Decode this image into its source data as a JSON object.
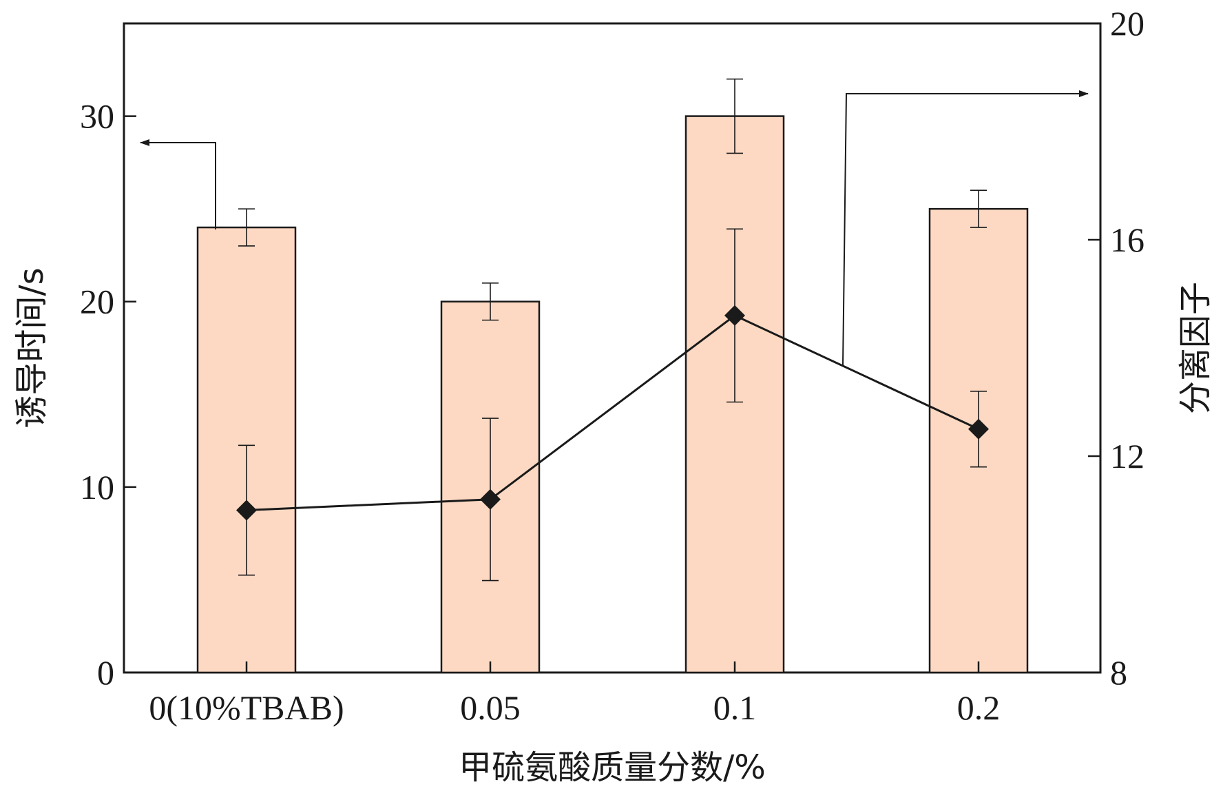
{
  "chart_data": {
    "type": "bar+line",
    "categories": [
      "0(10%TBAB)",
      "0.05",
      "0.1",
      "0.2"
    ],
    "bar_series": {
      "name": "诱导时间",
      "axis": "left",
      "values": [
        24,
        20,
        30,
        25
      ],
      "errors": [
        1,
        1,
        2,
        1
      ]
    },
    "line_series": {
      "name": "分离因子",
      "axis": "right",
      "values": [
        11.0,
        11.2,
        14.6,
        12.5
      ],
      "errors": [
        1.2,
        1.5,
        1.6,
        0.7
      ]
    },
    "xlabel": "甲硫氨酸质量分数/%",
    "ylabel_left": "诱导时间/s",
    "ylabel_right": "分离因子",
    "ylim_left": [
      0,
      35
    ],
    "ylim_right": [
      8,
      20
    ],
    "yticks_left": [
      "0",
      "10",
      "20",
      "30"
    ],
    "yticks_right": [
      "8",
      "12",
      "16",
      "20"
    ],
    "colors": {
      "bar_fill": "#fdd9c3",
      "bar_edge": "#1a1a1a",
      "line": "#1a1a1a",
      "marker": "#1a1a1a"
    }
  }
}
